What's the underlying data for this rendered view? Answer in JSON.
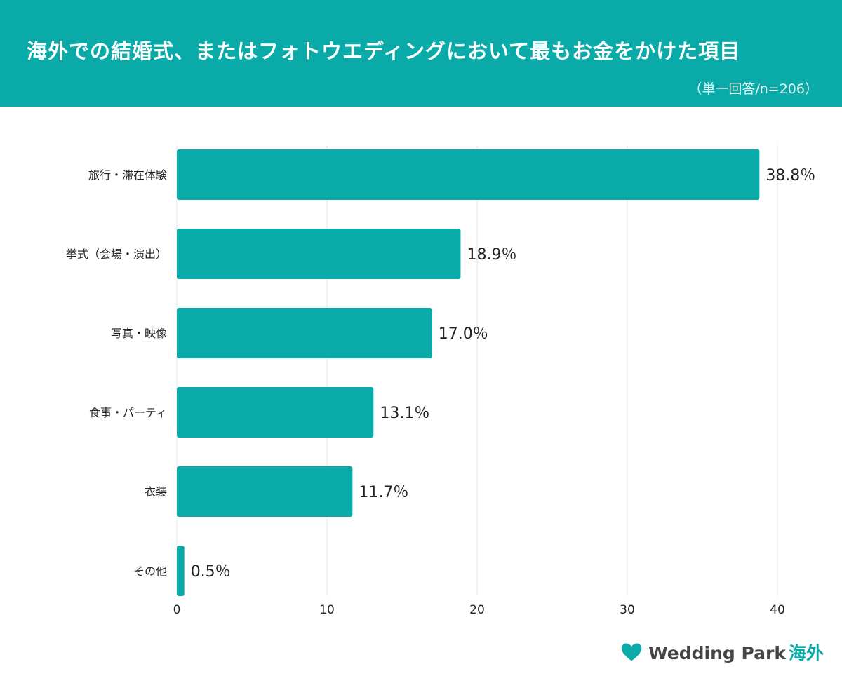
{
  "header": {
    "title": "海外での結婚式、またはフォトウエディングにおいて最もお金をかけた項目",
    "subtitle": "（単一回答/n=206）"
  },
  "colors": {
    "accent": "#0aaaa8",
    "bar": "#0aaaa8",
    "grid": "#e3e3e3",
    "text": "#222222"
  },
  "chart_data": {
    "type": "bar",
    "orientation": "horizontal",
    "categories": [
      "旅行・滞在体験",
      "挙式（会場・演出）",
      "写真・映像",
      "食事・パーティ",
      "衣装",
      "その他"
    ],
    "values": [
      38.8,
      18.9,
      17.0,
      13.1,
      11.7,
      0.5
    ],
    "value_labels": [
      "38.8％",
      "18.9％",
      "17.0％",
      "13.1％",
      "11.7％",
      "0.5％"
    ],
    "xlim": [
      0,
      40
    ],
    "xticks": [
      0,
      10,
      20,
      30,
      40
    ],
    "grid": true
  },
  "logo": {
    "brand": "Wedding Park",
    "suffix": "海外",
    "icon": "heart-icon"
  }
}
